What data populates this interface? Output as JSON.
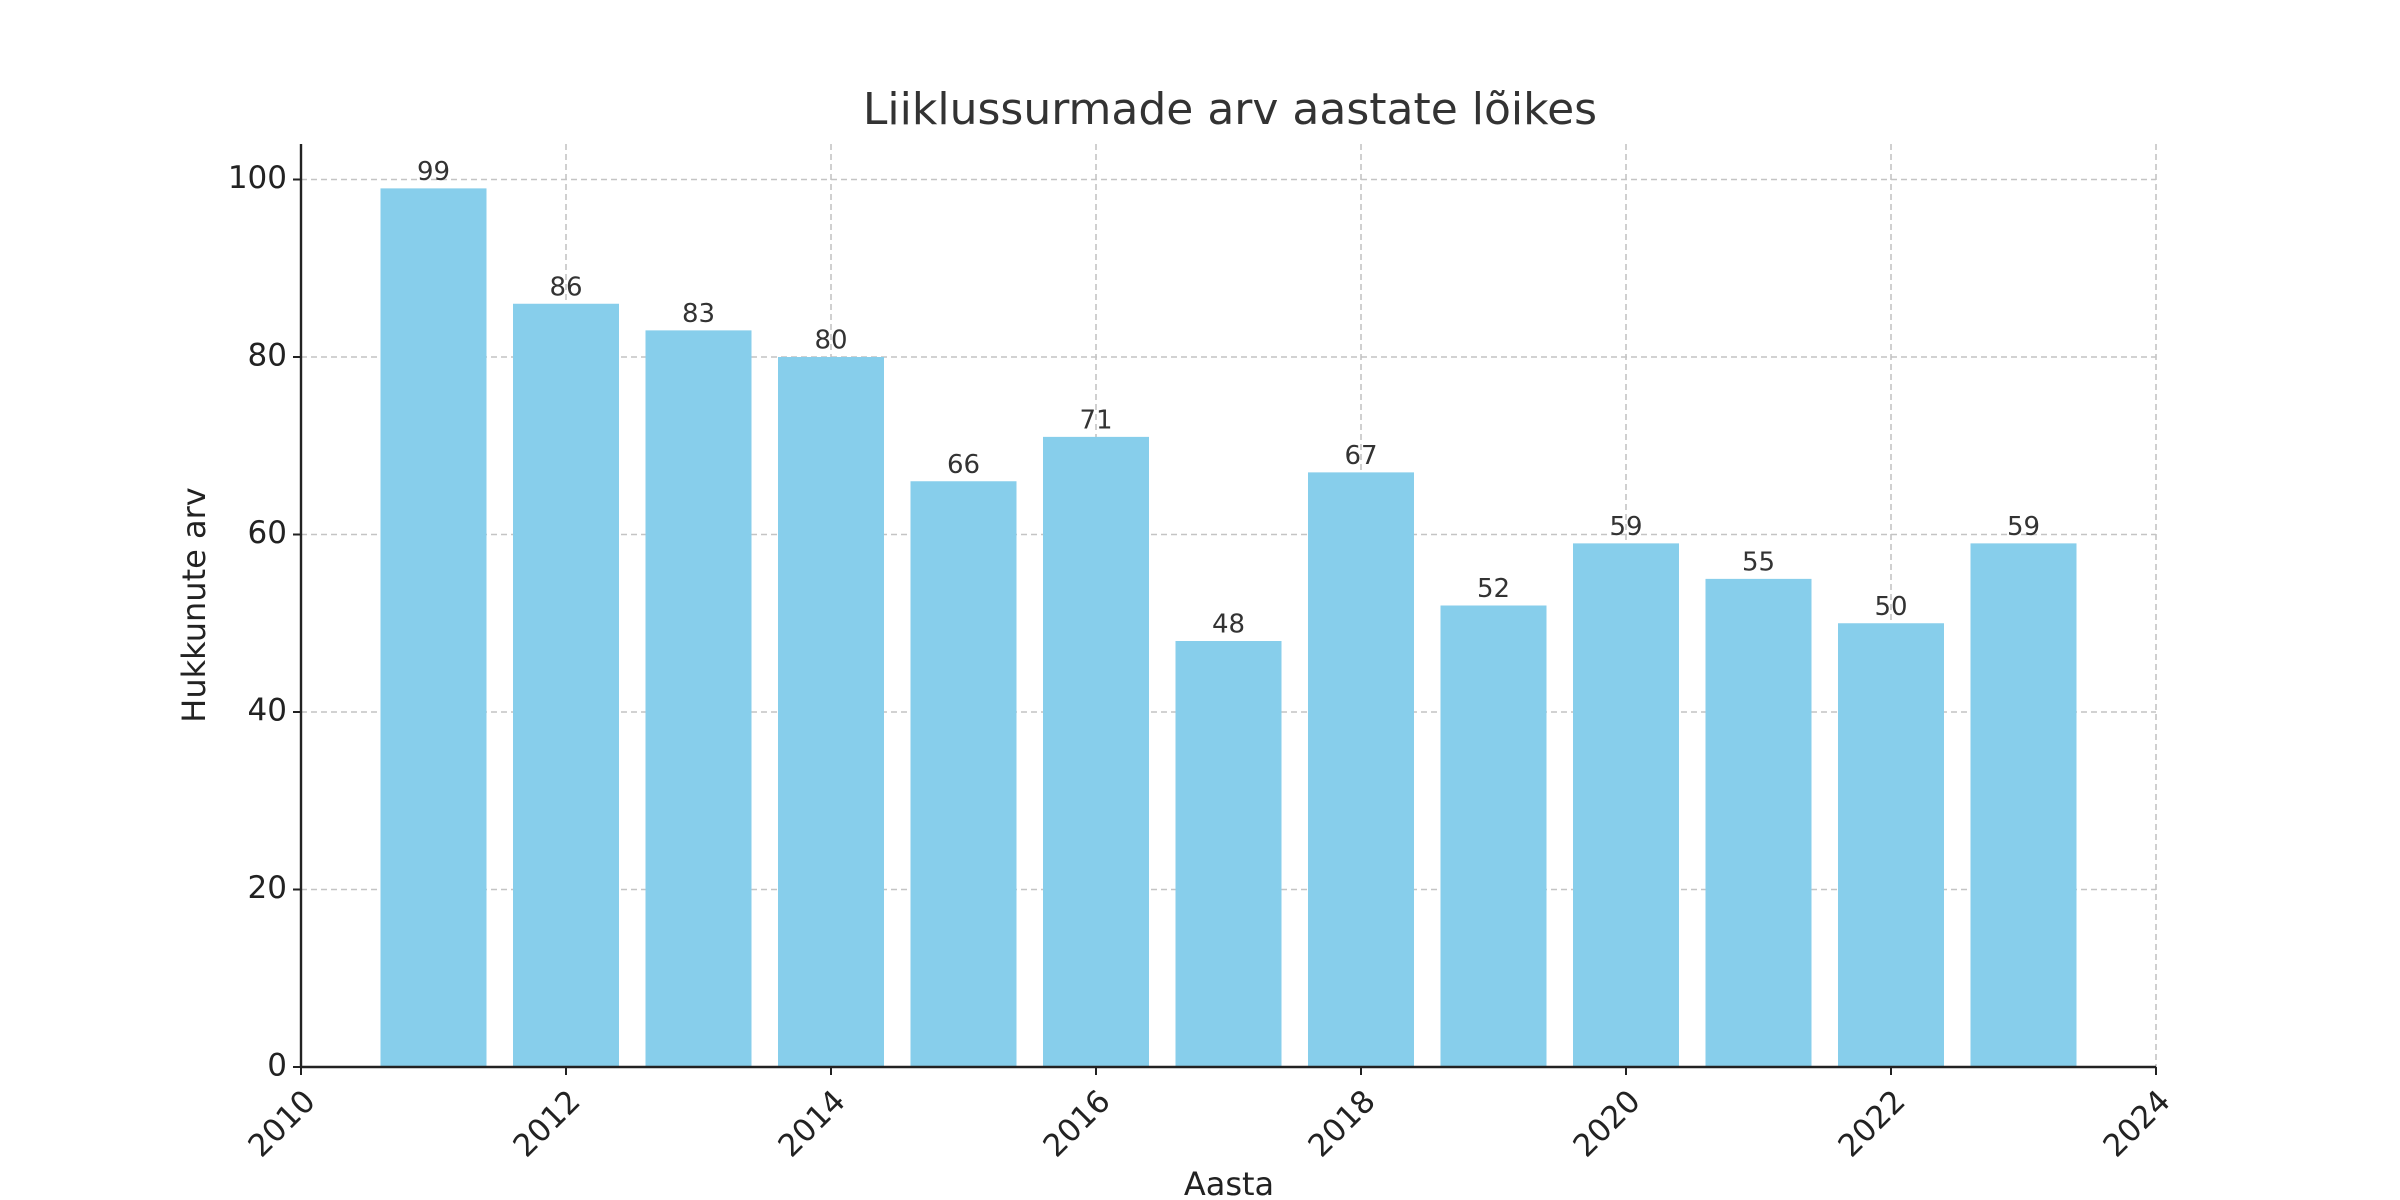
{
  "chart_data": {
    "type": "bar",
    "title": "Liiklussurmade arv aastate lõikes",
    "x_label": "Aasta",
    "y_label": "Hukkunute arv",
    "x": [
      2011,
      2012,
      2013,
      2014,
      2015,
      2016,
      2017,
      2018,
      2019,
      2020,
      2021,
      2022,
      2023
    ],
    "values": [
      99,
      86,
      83,
      80,
      66,
      71,
      48,
      67,
      52,
      59,
      55,
      50,
      59
    ],
    "color": "#87ceeb",
    "xlim": [
      2010,
      2024
    ],
    "xticks": [
      2010,
      2012,
      2014,
      2016,
      2018,
      2020,
      2022,
      2024
    ],
    "ylim": [
      0,
      104
    ],
    "yticks": [
      0,
      20,
      40,
      60,
      80,
      100
    ],
    "grid": true
  }
}
